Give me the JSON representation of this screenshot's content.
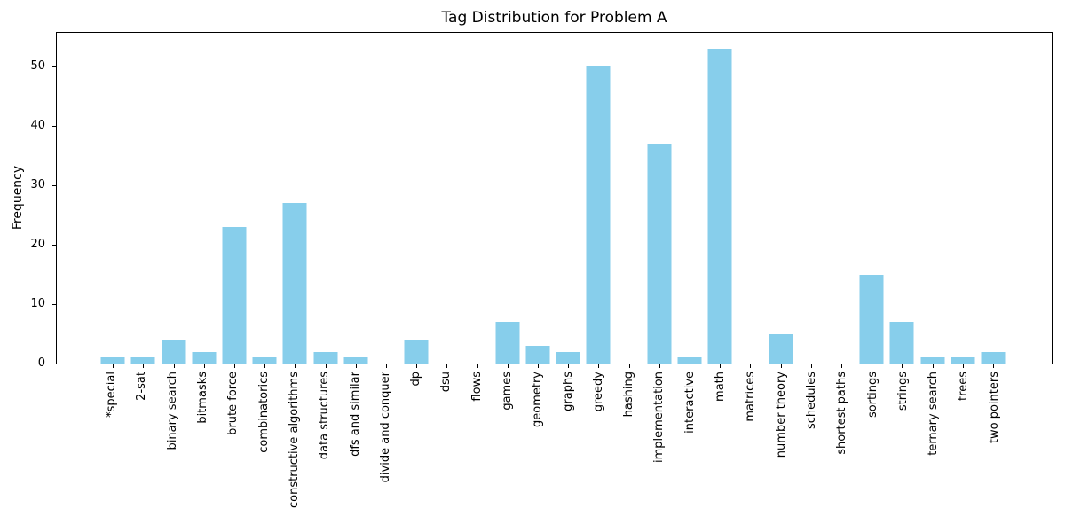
{
  "chart_data": {
    "type": "bar",
    "title": "Tag Distribution for Problem A",
    "xlabel": "",
    "ylabel": "Frequency",
    "categories": [
      "*special",
      "2-sat",
      "binary search",
      "bitmasks",
      "brute force",
      "combinatorics",
      "constructive algorithms",
      "data structures",
      "dfs and similar",
      "divide and conquer",
      "dp",
      "dsu",
      "flows",
      "games",
      "geometry",
      "graphs",
      "greedy",
      "hashing",
      "implementation",
      "interactive",
      "math",
      "matrices",
      "number theory",
      "schedules",
      "shortest paths",
      "sortings",
      "strings",
      "ternary search",
      "trees",
      "two pointers"
    ],
    "values": [
      1,
      1,
      4,
      2,
      23,
      1,
      27,
      2,
      1,
      0,
      4,
      0,
      0,
      7,
      3,
      2,
      50,
      0,
      37,
      1,
      53,
      0,
      5,
      0,
      0,
      15,
      7,
      1,
      1,
      2
    ],
    "yticks": [
      0,
      10,
      20,
      30,
      40,
      50
    ],
    "ylim": [
      0,
      56
    ],
    "x_tick_rotation": 90,
    "grid": false,
    "legend": false,
    "bar_color": "#87CEEB",
    "axis_color": "#000000",
    "text_color": "#000000",
    "background_color": "#ffffff"
  }
}
